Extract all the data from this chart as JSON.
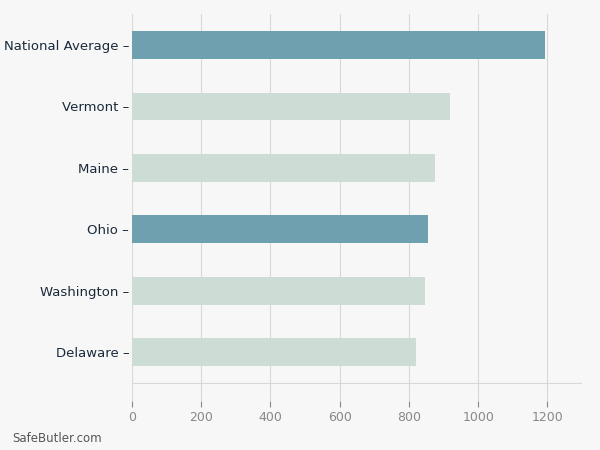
{
  "categories": [
    "National Average",
    "Vermont",
    "Maine",
    "Ohio",
    "Washington",
    "Delaware"
  ],
  "values": [
    1192,
    920,
    875,
    855,
    845,
    820
  ],
  "bar_colors": [
    "#6fa0af",
    "#cdddd5",
    "#cdddd5",
    "#6fa0af",
    "#cdddd5",
    "#cdddd5"
  ],
  "background_color": "#f7f7f7",
  "xlim": [
    0,
    1300
  ],
  "xticks": [
    0,
    200,
    400,
    600,
    800,
    1000,
    1200
  ],
  "grid_color": "#d8d8d8",
  "label_color": "#1a2a3a",
  "tick_color": "#888888",
  "watermark": "SafeButler.com",
  "bar_height": 0.45,
  "figsize": [
    6.0,
    4.5
  ],
  "dpi": 100
}
